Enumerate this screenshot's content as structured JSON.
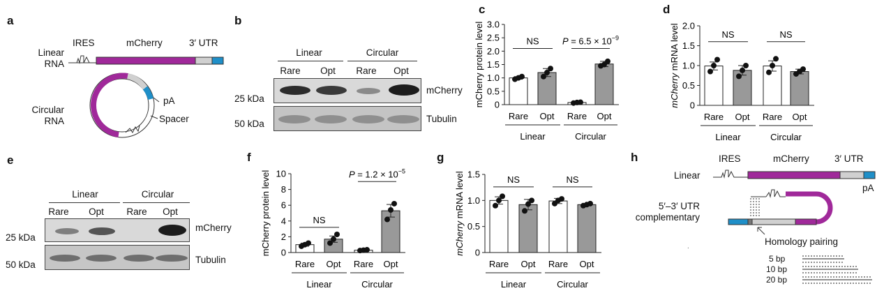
{
  "panels": {
    "a": "a",
    "b": "b",
    "c": "c",
    "d": "d",
    "e": "e",
    "f": "f",
    "g": "g",
    "h": "h"
  },
  "panel_a": {
    "ires": "IRES",
    "mcherry": "mCherry",
    "utr": "3′ UTR",
    "linear_l1": "Linear",
    "linear_l2": "RNA",
    "circular_l1": "Circular",
    "circular_l2": "RNA",
    "pa": "pA",
    "spacer": "Spacer",
    "colors": {
      "cds": "#a0299a",
      "utr": "#d0d0d0",
      "pa": "#1f8fc8"
    }
  },
  "panel_b": {
    "group1": "Linear",
    "group2": "Circular",
    "lanes": [
      "Rare",
      "Opt",
      "Rare",
      "Opt"
    ],
    "marker1": "25 kDa",
    "marker2": "50 kDa",
    "band1": "mCherry",
    "band2": "Tubulin"
  },
  "panel_e": {
    "group1": "Linear",
    "group2": "Circular",
    "lanes": [
      "Rare",
      "Opt",
      "Rare",
      "Opt"
    ],
    "marker1": "25 kDa",
    "marker2": "50 kDa",
    "band1": "mCherry",
    "band2": "Tubulin"
  },
  "panel_h": {
    "linear": "Linear",
    "ires": "IRES",
    "mcherry": "mCherry",
    "utr": "3′ UTR",
    "pa": "pA",
    "comp_l1": "5′–3′ UTR",
    "comp_l2": "complementary",
    "homology": "Homology pairing",
    "bp": [
      "5 bp",
      "10 bp",
      "20 bp"
    ],
    "dot": "."
  },
  "chart_data": [
    {
      "panel": "c",
      "type": "bar",
      "ylabel": "mCherry protein level",
      "yticks": [
        "0",
        "0.5",
        "1.0",
        "1.5",
        "2.0",
        "2.5",
        "3.0"
      ],
      "ylim": [
        0,
        3.0
      ],
      "categories": [
        "Rare",
        "Opt",
        "Rare",
        "Opt"
      ],
      "groups": [
        "Linear",
        "Circular"
      ],
      "values": [
        1.0,
        1.2,
        0.08,
        1.52
      ],
      "errors": [
        0.05,
        0.15,
        0.03,
        0.1
      ],
      "points": [
        [
          0.95,
          1.0,
          1.05
        ],
        [
          1.05,
          1.2,
          1.35
        ],
        [
          0.06,
          0.08,
          0.09
        ],
        [
          1.45,
          1.5,
          1.62
        ]
      ],
      "fills": [
        "#ffffff",
        "#999999",
        "#ffffff",
        "#999999"
      ],
      "annotations": [
        {
          "text": "NS",
          "pair": [
            0,
            1
          ],
          "y": 2.1
        },
        {
          "text": "P = 6.5 × 10",
          "sup": "−9",
          "pair": [
            2,
            3
          ],
          "y": 2.1
        }
      ]
    },
    {
      "panel": "d",
      "type": "bar",
      "ylabel": "mCherry mRNA level",
      "ylabel_italic": "mCherry",
      "ylabel_rest": " mRNA level",
      "yticks": [
        "0",
        "0.5",
        "1.0",
        "1.5",
        "2.0"
      ],
      "ylim": [
        0,
        2.0
      ],
      "categories": [
        "Rare",
        "Opt",
        "Rare",
        "Opt"
      ],
      "groups": [
        "Linear",
        "Circular"
      ],
      "values": [
        0.99,
        0.88,
        0.99,
        0.85
      ],
      "errors": [
        0.1,
        0.12,
        0.13,
        0.06
      ],
      "points": [
        [
          0.85,
          1.0,
          1.15
        ],
        [
          0.73,
          0.88,
          1.0
        ],
        [
          0.83,
          1.0,
          1.17
        ],
        [
          0.79,
          0.85,
          0.91
        ]
      ],
      "fills": [
        "#ffffff",
        "#999999",
        "#ffffff",
        "#999999"
      ],
      "annotations": [
        {
          "text": "NS",
          "pair": [
            0,
            1
          ],
          "y": 1.6
        },
        {
          "text": "NS",
          "pair": [
            2,
            3
          ],
          "y": 1.6
        }
      ]
    },
    {
      "panel": "f",
      "type": "bar",
      "ylabel": "mCherry protein level",
      "yticks": [
        "0",
        "2",
        "4",
        "6",
        "8",
        "10"
      ],
      "ylim": [
        0,
        10
      ],
      "categories": [
        "Rare",
        "Opt",
        "Rare",
        "Opt"
      ],
      "groups": [
        "Linear",
        "Circular"
      ],
      "values": [
        1.0,
        1.7,
        0.3,
        5.3
      ],
      "errors": [
        0.2,
        0.4,
        0.1,
        0.8
      ],
      "points": [
        [
          0.8,
          1.0,
          1.2
        ],
        [
          1.2,
          1.7,
          2.3
        ],
        [
          0.25,
          0.3,
          0.35
        ],
        [
          4.2,
          5.4,
          6.2
        ]
      ],
      "fills": [
        "#ffffff",
        "#999999",
        "#ffffff",
        "#999999"
      ],
      "annotations": [
        {
          "text": "NS",
          "pair": [
            0,
            1
          ],
          "y": 3.2
        },
        {
          "text": "P = 1.2 × 10",
          "sup": "−5",
          "pair": [
            2,
            3
          ],
          "y": 9.0
        }
      ]
    },
    {
      "panel": "g",
      "type": "bar",
      "ylabel": "mCherry mRNA level",
      "ylabel_italic": "mCherry",
      "ylabel_rest": " mRNA level",
      "yticks": [
        "0",
        "0.5",
        "1.0",
        "1.5"
      ],
      "ylim": [
        0,
        1.5
      ],
      "categories": [
        "Rare",
        "Opt",
        "Rare",
        "Opt"
      ],
      "groups": [
        "Linear",
        "Circular"
      ],
      "values": [
        1.0,
        0.92,
        0.99,
        0.92
      ],
      "errors": [
        0.07,
        0.1,
        0.05,
        0.02
      ],
      "points": [
        [
          0.9,
          1.0,
          1.08
        ],
        [
          0.8,
          0.93,
          1.0
        ],
        [
          0.94,
          1.0,
          1.03
        ],
        [
          0.9,
          0.92,
          0.94
        ]
      ],
      "fills": [
        "#ffffff",
        "#999999",
        "#ffffff",
        "#999999"
      ],
      "annotations": [
        {
          "text": "NS",
          "pair": [
            0,
            1
          ],
          "y": 1.26
        },
        {
          "text": "NS",
          "pair": [
            2,
            3
          ],
          "y": 1.26
        }
      ]
    }
  ]
}
